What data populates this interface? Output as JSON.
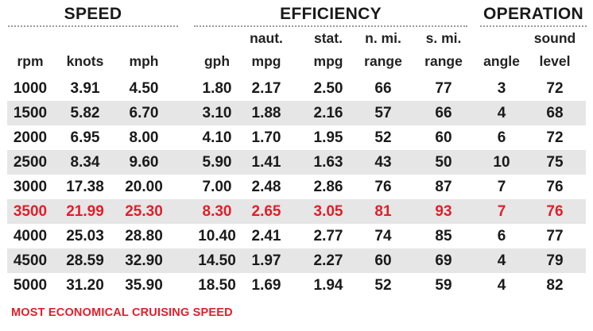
{
  "groups": {
    "speed": "SPEED",
    "efficiency": "EFFICIENCY",
    "operation": "OPERATION"
  },
  "header_top": {
    "naut_mpg": "naut.",
    "stat_mpg": "stat.",
    "n_range": "n. mi.",
    "s_range": "s. mi.",
    "sound": "sound"
  },
  "header_bottom": {
    "rpm": "rpm",
    "knots": "knots",
    "mph": "mph",
    "gph": "gph",
    "naut_mpg": "mpg",
    "stat_mpg": "mpg",
    "n_range": "range",
    "s_range": "range",
    "angle": "angle",
    "sound": "level"
  },
  "rows": [
    {
      "rpm": "1000",
      "knots": "3.91",
      "mph": "4.50",
      "gph": "1.80",
      "naut_mpg": "2.17",
      "stat_mpg": "2.50",
      "n_range": "66",
      "s_range": "77",
      "angle": "3",
      "sound": "72"
    },
    {
      "rpm": "1500",
      "knots": "5.82",
      "mph": "6.70",
      "gph": "3.10",
      "naut_mpg": "1.88",
      "stat_mpg": "2.16",
      "n_range": "57",
      "s_range": "66",
      "angle": "4",
      "sound": "68"
    },
    {
      "rpm": "2000",
      "knots": "6.95",
      "mph": "8.00",
      "gph": "4.10",
      "naut_mpg": "1.70",
      "stat_mpg": "1.95",
      "n_range": "52",
      "s_range": "60",
      "angle": "6",
      "sound": "72"
    },
    {
      "rpm": "2500",
      "knots": "8.34",
      "mph": "9.60",
      "gph": "5.90",
      "naut_mpg": "1.41",
      "stat_mpg": "1.63",
      "n_range": "43",
      "s_range": "50",
      "angle": "10",
      "sound": "75"
    },
    {
      "rpm": "3000",
      "knots": "17.38",
      "mph": "20.00",
      "gph": "7.00",
      "naut_mpg": "2.48",
      "stat_mpg": "2.86",
      "n_range": "76",
      "s_range": "87",
      "angle": "7",
      "sound": "76"
    },
    {
      "rpm": "3500",
      "knots": "21.99",
      "mph": "25.30",
      "gph": "8.30",
      "naut_mpg": "2.65",
      "stat_mpg": "3.05",
      "n_range": "81",
      "s_range": "93",
      "angle": "7",
      "sound": "76"
    },
    {
      "rpm": "4000",
      "knots": "25.03",
      "mph": "28.80",
      "gph": "10.40",
      "naut_mpg": "2.41",
      "stat_mpg": "2.77",
      "n_range": "74",
      "s_range": "85",
      "angle": "6",
      "sound": "77"
    },
    {
      "rpm": "4500",
      "knots": "28.59",
      "mph": "32.90",
      "gph": "14.50",
      "naut_mpg": "1.97",
      "stat_mpg": "2.27",
      "n_range": "60",
      "s_range": "69",
      "angle": "4",
      "sound": "79"
    },
    {
      "rpm": "5000",
      "knots": "31.20",
      "mph": "35.90",
      "gph": "18.50",
      "naut_mpg": "1.69",
      "stat_mpg": "1.94",
      "n_range": "52",
      "s_range": "59",
      "angle": "4",
      "sound": "82"
    }
  ],
  "highlight_row": 5,
  "colors": {
    "highlight": "#e0202a",
    "shade": "#e6e6e6"
  },
  "footnote": "MOST ECONOMICAL CRUISING SPEED"
}
